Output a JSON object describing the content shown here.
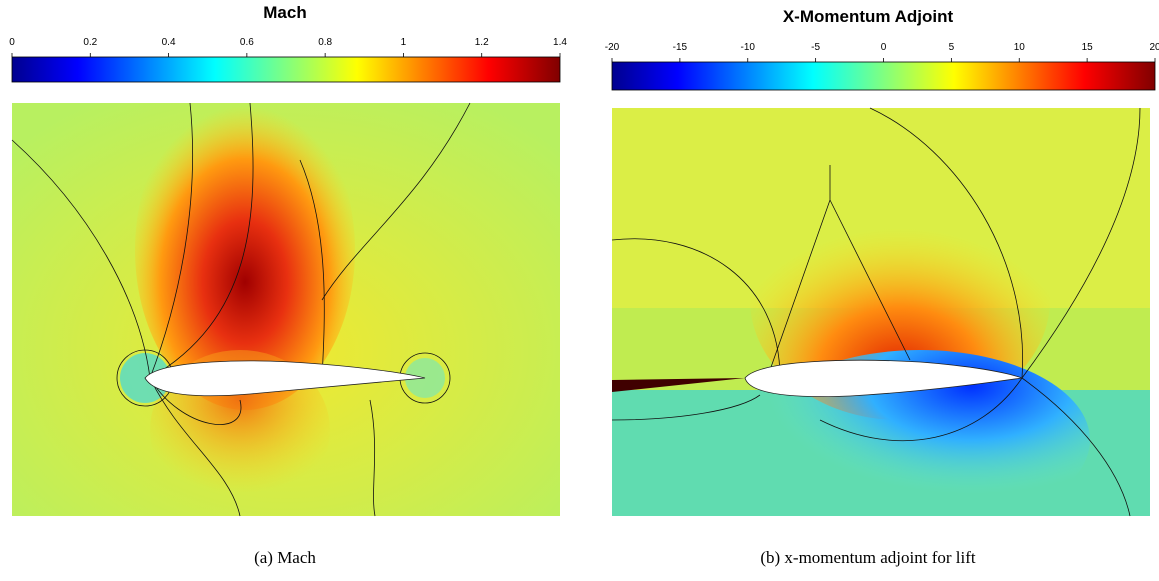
{
  "panels": [
    {
      "title": "Mach",
      "colorbar_ticks": [
        0,
        0.2,
        0.4,
        0.6,
        0.8,
        1,
        1.2,
        1.4
      ],
      "caption": "(a) Mach"
    },
    {
      "title": "X-Momentum Adjoint",
      "colorbar_ticks": [
        -20,
        -15,
        -10,
        -5,
        0,
        5,
        10,
        15,
        20
      ],
      "caption": "(b) x-momentum adjoint for lift"
    }
  ]
}
